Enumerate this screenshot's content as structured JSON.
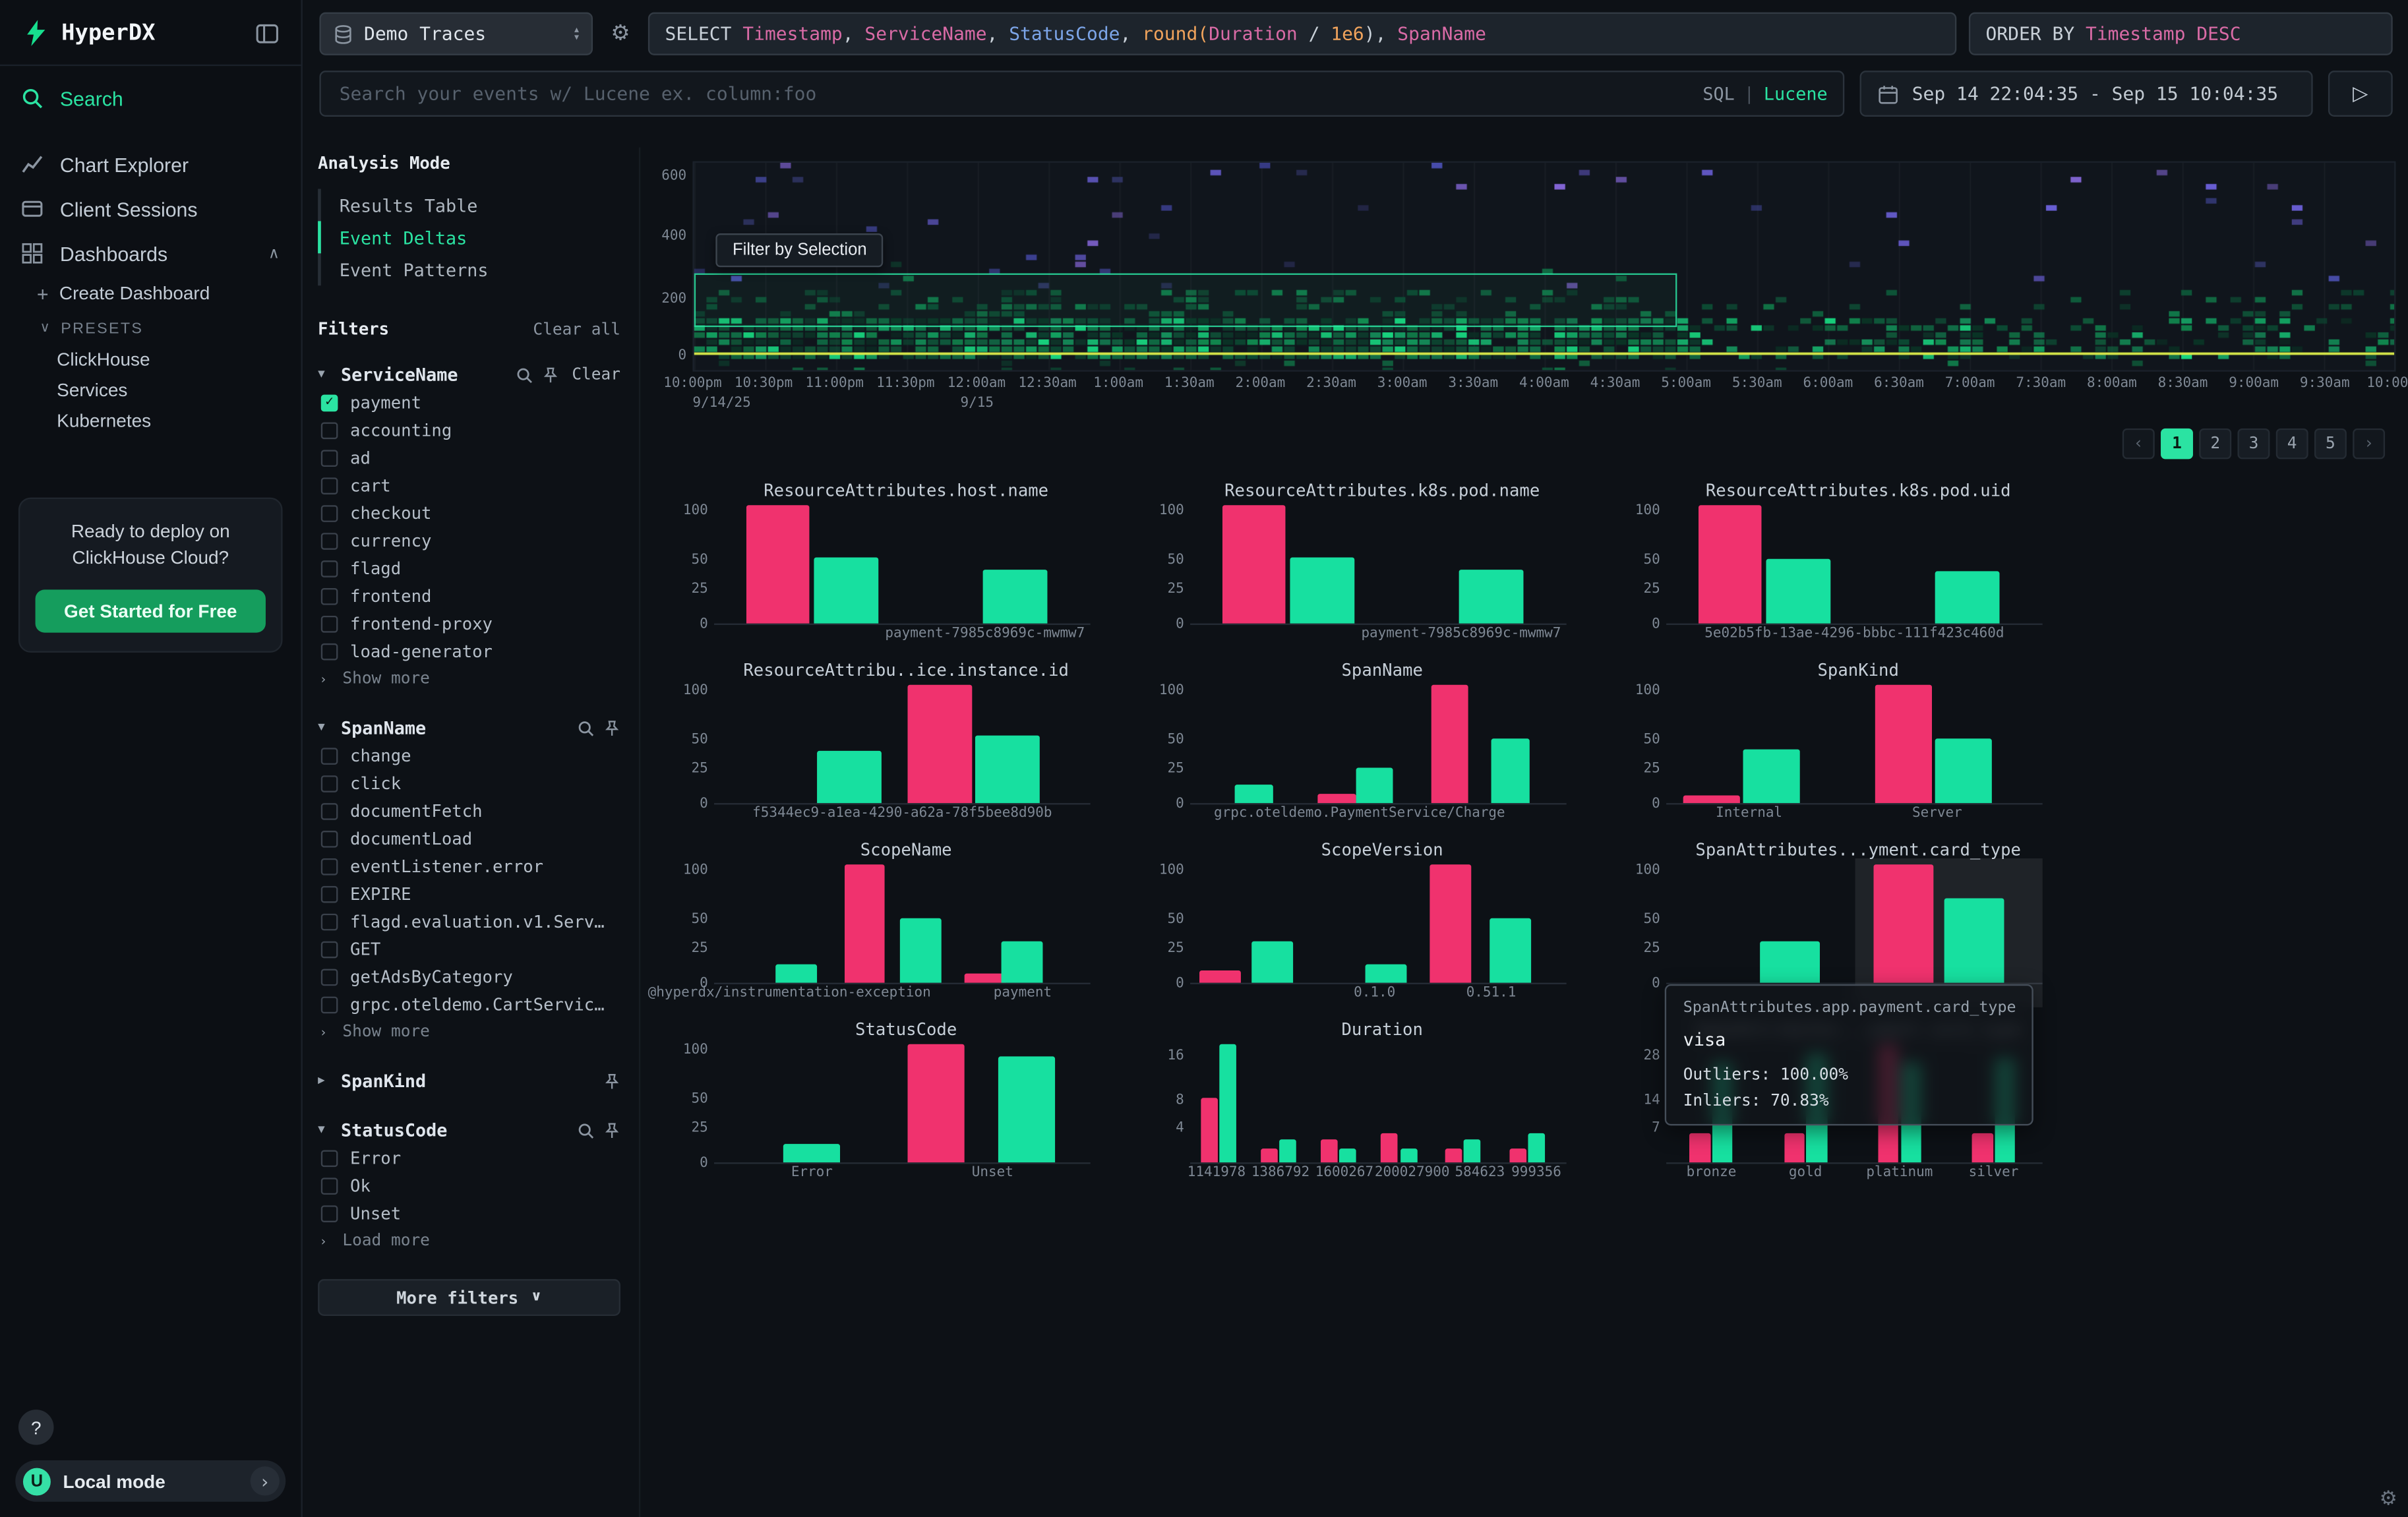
{
  "colors": {
    "accent": "#2be3a2",
    "outlier": "#f0326e",
    "inlier": "#17e0a0"
  },
  "sidebar": {
    "logo_text": "HyperDX",
    "nav": [
      {
        "label": "Search",
        "active": true
      },
      {
        "label": "Chart Explorer",
        "active": false
      },
      {
        "label": "Client Sessions",
        "active": false
      },
      {
        "label": "Dashboards",
        "active": false
      }
    ],
    "create_dashboard": "Create Dashboard",
    "presets_label": "PRESETS",
    "presets": [
      "ClickHouse",
      "Services",
      "Kubernetes"
    ],
    "promo": {
      "line1": "Ready to deploy on",
      "line2": "ClickHouse Cloud?",
      "button": "Get Started for Free"
    },
    "help_label": "?",
    "local_mode": {
      "avatar": "U",
      "label": "Local mode"
    }
  },
  "topbar": {
    "source_select": "Demo Traces",
    "sql_tokens": [
      {
        "text": "SELECT ",
        "type": "keyword"
      },
      {
        "text": "Timestamp",
        "type": "column"
      },
      {
        "text": ", ",
        "type": "plain"
      },
      {
        "text": "ServiceName",
        "type": "column"
      },
      {
        "text": ", ",
        "type": "plain"
      },
      {
        "text": "StatusCode",
        "type": "column-alt"
      },
      {
        "text": ", ",
        "type": "plain"
      },
      {
        "text": "round(",
        "type": "function"
      },
      {
        "text": "Duration",
        "type": "column"
      },
      {
        "text": " / ",
        "type": "plain"
      },
      {
        "text": "1e6",
        "type": "number"
      },
      {
        "text": "), ",
        "type": "plain"
      },
      {
        "text": "SpanName",
        "type": "column"
      }
    ],
    "order_by": {
      "keyword": "ORDER BY ",
      "value": "Timestamp DESC"
    },
    "search_placeholder": "Search your events w/ Lucene ex. column:foo",
    "lang_toggle": {
      "sql": "SQL",
      "divider": "|",
      "lucene": "Lucene"
    },
    "time_range": "Sep 14 22:04:35 - Sep 15 10:04:35",
    "run_icon": "▷"
  },
  "analysis_mode": {
    "title": "Analysis Mode",
    "options": [
      {
        "label": "Results Table",
        "active": false
      },
      {
        "label": "Event Deltas",
        "active": true
      },
      {
        "label": "Event Patterns",
        "active": false
      }
    ]
  },
  "filters": {
    "title": "Filters",
    "clear_all": "Clear all",
    "groups": [
      {
        "name": "ServiceName",
        "expanded": true,
        "has_search": true,
        "has_pin": true,
        "clear_label": "Clear",
        "items": [
          {
            "label": "payment",
            "checked": true
          },
          {
            "label": "accounting",
            "checked": false
          },
          {
            "label": "ad",
            "checked": false
          },
          {
            "label": "cart",
            "checked": false
          },
          {
            "label": "checkout",
            "checked": false
          },
          {
            "label": "currency",
            "checked": false
          },
          {
            "label": "flagd",
            "checked": false
          },
          {
            "label": "frontend",
            "checked": false
          },
          {
            "label": "frontend-proxy",
            "checked": false
          },
          {
            "label": "load-generator",
            "checked": false
          }
        ],
        "more_label": "Show more"
      },
      {
        "name": "SpanName",
        "expanded": true,
        "has_search": true,
        "has_pin": true,
        "items": [
          {
            "label": "change",
            "checked": false
          },
          {
            "label": "click",
            "checked": false
          },
          {
            "label": "documentFetch",
            "checked": false
          },
          {
            "label": "documentLoad",
            "checked": false
          },
          {
            "label": "eventListener.error",
            "checked": false
          },
          {
            "label": "EXPIRE",
            "checked": false
          },
          {
            "label": "flagd.evaluation.v1.Serv…",
            "checked": false
          },
          {
            "label": "GET",
            "checked": false
          },
          {
            "label": "getAdsByCategory",
            "checked": false
          },
          {
            "label": "grpc.oteldemo.CartServic…",
            "checked": false
          }
        ],
        "more_label": "Show more"
      },
      {
        "name": "SpanKind",
        "expanded": false,
        "has_search": false,
        "has_pin": true,
        "items": []
      },
      {
        "name": "StatusCode",
        "expanded": true,
        "has_search": true,
        "has_pin": true,
        "items": [
          {
            "label": "Error",
            "checked": false
          },
          {
            "label": "Ok",
            "checked": false
          },
          {
            "label": "Unset",
            "checked": false
          }
        ],
        "more_label": "Load more"
      }
    ],
    "more_filters": "More filters"
  },
  "pagination": {
    "prev": "‹",
    "pages": [
      "1",
      "2",
      "3",
      "4",
      "5"
    ],
    "active": "1",
    "next": "›"
  },
  "hover_tooltip": {
    "title": "SpanAttributes.app.payment.card_type",
    "value": "visa",
    "outliers": "Outliers: 100.00%",
    "inliers": "Inliers: 70.83%"
  },
  "chart_data": [
    {
      "type": "heatmap",
      "yticks": [
        {
          "label": "600",
          "f": 0.07
        },
        {
          "label": "400",
          "f": 0.36
        },
        {
          "label": "200",
          "f": 0.66
        },
        {
          "label": "0",
          "f": 0.93
        }
      ],
      "xticks": [
        "10:00pm",
        "10:30pm",
        "11:00pm",
        "11:30pm",
        "12:00am",
        "12:30am",
        "1:00am",
        "1:30am",
        "2:00am",
        "2:30am",
        "3:00am",
        "3:30am",
        "4:00am",
        "4:30am",
        "5:00am",
        "5:30am",
        "6:00am",
        "6:30am",
        "7:00am",
        "7:30am",
        "8:00am",
        "8:30am",
        "9:00am",
        "9:30am",
        "10:00am"
      ],
      "date_ticks": [
        {
          "label": "9/14/25",
          "f": 0.0
        },
        {
          "label": "9/15",
          "f": 0.167
        }
      ],
      "selection": {
        "x0": 0.0,
        "x1": 0.578,
        "y0": 0.53,
        "y1": 0.79,
        "label": "Filter by Selection"
      },
      "palette": {
        "bg": "#10151c",
        "dense": [
          "#0c4a33",
          "#0f6b44",
          "#13a562",
          "#18d57f",
          "#0a3526",
          "#11894f"
        ],
        "mid": [
          "#0c4a33",
          "#0e5c3b",
          "#117a4a"
        ],
        "sparse": [
          "#4a4fae",
          "#6a5fd6",
          "#3b3f8f",
          "#8a6ae0",
          "#35396f"
        ],
        "baseline": "#d8e84a"
      }
    },
    {
      "type": "bar",
      "title": "ResourceAttributes.host.name",
      "bar_w": 0.17,
      "yticks": [
        {
          "label": "100",
          "f": 0.05
        },
        {
          "label": "50",
          "f": 0.46
        },
        {
          "label": "25",
          "f": 0.7
        },
        {
          "label": "0",
          "f": 1.0
        }
      ],
      "bars": [
        {
          "x": 0.17,
          "h": 1.0,
          "s": "outlier"
        },
        {
          "x": 0.35,
          "h": 0.56,
          "s": "inlier"
        },
        {
          "x": 0.8,
          "h": 0.45,
          "s": "inlier"
        }
      ],
      "xlabels": [
        {
          "label": "payment-7985c8969c-mwmw7",
          "x": 0.72
        }
      ]
    },
    {
      "type": "bar",
      "title": "ResourceAttributes.k8s.pod.name",
      "bar_w": 0.17,
      "yticks": [
        {
          "label": "100",
          "f": 0.05
        },
        {
          "label": "50",
          "f": 0.46
        },
        {
          "label": "25",
          "f": 0.7
        },
        {
          "label": "0",
          "f": 1.0
        }
      ],
      "bars": [
        {
          "x": 0.17,
          "h": 1.0,
          "s": "outlier"
        },
        {
          "x": 0.35,
          "h": 0.56,
          "s": "inlier"
        },
        {
          "x": 0.8,
          "h": 0.45,
          "s": "inlier"
        }
      ],
      "xlabels": [
        {
          "label": "payment-7985c8969c-mwmw7",
          "x": 0.72
        }
      ]
    },
    {
      "type": "bar",
      "title": "ResourceAttributes.k8s.pod.uid",
      "bar_w": 0.17,
      "yticks": [
        {
          "label": "100",
          "f": 0.05
        },
        {
          "label": "50",
          "f": 0.46
        },
        {
          "label": "25",
          "f": 0.7
        },
        {
          "label": "0",
          "f": 1.0
        }
      ],
      "bars": [
        {
          "x": 0.17,
          "h": 1.0,
          "s": "outlier"
        },
        {
          "x": 0.35,
          "h": 0.55,
          "s": "inlier"
        },
        {
          "x": 0.8,
          "h": 0.44,
          "s": "inlier"
        }
      ],
      "xlabels": [
        {
          "label": "5e02b5fb-13ae-4296-bbbc-111f423c460d",
          "x": 0.5
        }
      ]
    },
    {
      "type": "bar",
      "title": "ResourceAttribu..ice.instance.id",
      "bar_w": 0.17,
      "yticks": [
        {
          "label": "100",
          "f": 0.05
        },
        {
          "label": "50",
          "f": 0.46
        },
        {
          "label": "25",
          "f": 0.7
        },
        {
          "label": "0",
          "f": 1.0
        }
      ],
      "bars": [
        {
          "x": 0.36,
          "h": 0.44,
          "s": "inlier"
        },
        {
          "x": 0.6,
          "h": 1.0,
          "s": "outlier"
        },
        {
          "x": 0.78,
          "h": 0.57,
          "s": "inlier"
        }
      ],
      "xlabels": [
        {
          "label": "f5344ec9-a1ea-4290-a62a-78f5bee8d90b",
          "x": 0.5
        }
      ]
    },
    {
      "type": "bar",
      "title": "SpanName",
      "bar_w": 0.1,
      "yticks": [
        {
          "label": "100",
          "f": 0.05
        },
        {
          "label": "50",
          "f": 0.46
        },
        {
          "label": "25",
          "f": 0.7
        },
        {
          "label": "0",
          "f": 1.0
        }
      ],
      "bars": [
        {
          "x": 0.17,
          "h": 0.15,
          "s": "inlier"
        },
        {
          "x": 0.39,
          "h": 0.08,
          "s": "outlier"
        },
        {
          "x": 0.49,
          "h": 0.3,
          "s": "inlier"
        },
        {
          "x": 0.69,
          "h": 1.0,
          "s": "outlier"
        },
        {
          "x": 0.85,
          "h": 0.55,
          "s": "inlier"
        }
      ],
      "xlabels": [
        {
          "label": "grpc.oteldemo.PaymentService/Charge",
          "x": 0.45
        }
      ]
    },
    {
      "type": "bar",
      "title": "SpanKind",
      "bar_w": 0.15,
      "yticks": [
        {
          "label": "100",
          "f": 0.05
        },
        {
          "label": "50",
          "f": 0.46
        },
        {
          "label": "25",
          "f": 0.7
        },
        {
          "label": "0",
          "f": 1.0
        }
      ],
      "bars": [
        {
          "x": 0.12,
          "h": 0.06,
          "s": "outlier"
        },
        {
          "x": 0.28,
          "h": 0.45,
          "s": "inlier"
        },
        {
          "x": 0.63,
          "h": 1.0,
          "s": "outlier"
        },
        {
          "x": 0.79,
          "h": 0.55,
          "s": "inlier"
        }
      ],
      "xlabels": [
        {
          "label": "Internal",
          "x": 0.22
        },
        {
          "label": "Server",
          "x": 0.72
        }
      ]
    },
    {
      "type": "bar",
      "title": "ScopeName",
      "bar_w": 0.11,
      "yticks": [
        {
          "label": "100",
          "f": 0.05
        },
        {
          "label": "50",
          "f": 0.46
        },
        {
          "label": "25",
          "f": 0.7
        },
        {
          "label": "0",
          "f": 1.0
        }
      ],
      "bars": [
        {
          "x": 0.22,
          "h": 0.15,
          "s": "inlier"
        },
        {
          "x": 0.4,
          "h": 1.0,
          "s": "outlier"
        },
        {
          "x": 0.55,
          "h": 0.55,
          "s": "inlier"
        },
        {
          "x": 0.72,
          "h": 0.08,
          "s": "outlier"
        },
        {
          "x": 0.82,
          "h": 0.35,
          "s": "inlier"
        }
      ],
      "xlabels": [
        {
          "label": "@hyperdx/instrumentation-exception",
          "x": 0.2
        },
        {
          "label": "payment",
          "x": 0.82
        }
      ]
    },
    {
      "type": "bar",
      "title": "ScopeVersion",
      "bar_w": 0.11,
      "yticks": [
        {
          "label": "100",
          "f": 0.05
        },
        {
          "label": "50",
          "f": 0.46
        },
        {
          "label": "25",
          "f": 0.7
        },
        {
          "label": "0",
          "f": 1.0
        }
      ],
      "bars": [
        {
          "x": 0.08,
          "h": 0.1,
          "s": "outlier"
        },
        {
          "x": 0.22,
          "h": 0.35,
          "s": "inlier"
        },
        {
          "x": 0.52,
          "h": 0.15,
          "s": "inlier"
        },
        {
          "x": 0.69,
          "h": 1.0,
          "s": "outlier"
        },
        {
          "x": 0.85,
          "h": 0.55,
          "s": "inlier"
        }
      ],
      "xlabels": [
        {
          "label": "0.1.0",
          "x": 0.49
        },
        {
          "label": "0.51.1",
          "x": 0.8
        }
      ]
    },
    {
      "type": "bar",
      "title": "SpanAttributes...yment.card_type",
      "bar_w": 0.16,
      "highlight": [
        0.5,
        1.0
      ],
      "yticks": [
        {
          "label": "100",
          "f": 0.05
        },
        {
          "label": "50",
          "f": 0.46
        },
        {
          "label": "25",
          "f": 0.7
        },
        {
          "label": "0",
          "f": 1.0
        }
      ],
      "bars": [
        {
          "x": 0.33,
          "h": 0.35,
          "s": "inlier"
        },
        {
          "x": 0.63,
          "h": 1.0,
          "s": "outlier"
        },
        {
          "x": 0.82,
          "h": 0.72,
          "s": "inlier"
        }
      ],
      "xlabels": []
    },
    {
      "type": "bar",
      "title": "StatusCode",
      "bar_w": 0.15,
      "yticks": [
        {
          "label": "100",
          "f": 0.05
        },
        {
          "label": "50",
          "f": 0.46
        },
        {
          "label": "25",
          "f": 0.7
        },
        {
          "label": "0",
          "f": 1.0
        }
      ],
      "bars": [
        {
          "x": 0.26,
          "h": 0.15,
          "s": "inlier"
        },
        {
          "x": 0.59,
          "h": 1.0,
          "s": "outlier"
        },
        {
          "x": 0.83,
          "h": 0.9,
          "s": "inlier"
        }
      ],
      "xlabels": [
        {
          "label": "Error",
          "x": 0.26
        },
        {
          "label": "Unset",
          "x": 0.74
        }
      ]
    },
    {
      "type": "bar",
      "title": "Duration",
      "bar_w": 0.045,
      "yticks": [
        {
          "label": "16",
          "f": 0.1
        },
        {
          "label": "8",
          "f": 0.48
        },
        {
          "label": "4",
          "f": 0.7
        }
      ],
      "bars": [
        {
          "x": 0.05,
          "h": 0.55,
          "s": "outlier"
        },
        {
          "x": 0.1,
          "h": 1.0,
          "s": "inlier"
        },
        {
          "x": 0.21,
          "h": 0.12,
          "s": "outlier"
        },
        {
          "x": 0.26,
          "h": 0.2,
          "s": "inlier"
        },
        {
          "x": 0.37,
          "h": 0.2,
          "s": "outlier"
        },
        {
          "x": 0.42,
          "h": 0.12,
          "s": "inlier"
        },
        {
          "x": 0.53,
          "h": 0.25,
          "s": "outlier"
        },
        {
          "x": 0.58,
          "h": 0.12,
          "s": "inlier"
        },
        {
          "x": 0.7,
          "h": 0.12,
          "s": "outlier"
        },
        {
          "x": 0.75,
          "h": 0.2,
          "s": "inlier"
        },
        {
          "x": 0.87,
          "h": 0.12,
          "s": "outlier"
        },
        {
          "x": 0.92,
          "h": 0.25,
          "s": "inlier"
        }
      ],
      "xlabels": [
        {
          "label": "1141978",
          "x": 0.07
        },
        {
          "label": "1386792",
          "x": 0.24
        },
        {
          "label": "1600267",
          "x": 0.41
        },
        {
          "label": "200027900",
          "x": 0.59
        },
        {
          "label": "584623",
          "x": 0.77
        },
        {
          "label": "999356",
          "x": 0.92
        }
      ]
    },
    {
      "type": "bar",
      "title": "SpanAttributes...yment.card_type",
      "bar_w": 0.055,
      "yticks": [
        {
          "label": "28",
          "f": 0.1
        },
        {
          "label": "14",
          "f": 0.48
        },
        {
          "label": "7",
          "f": 0.7
        }
      ],
      "bars": [
        {
          "x": 0.09,
          "h": 0.25,
          "s": "outlier"
        },
        {
          "x": 0.15,
          "h": 0.85,
          "s": "inlier"
        },
        {
          "x": 0.34,
          "h": 0.25,
          "s": "outlier"
        },
        {
          "x": 0.4,
          "h": 0.92,
          "s": "inlier"
        },
        {
          "x": 0.59,
          "h": 1.0,
          "s": "outlier"
        },
        {
          "x": 0.65,
          "h": 0.85,
          "s": "inlier"
        },
        {
          "x": 0.84,
          "h": 0.25,
          "s": "outlier"
        },
        {
          "x": 0.9,
          "h": 0.88,
          "s": "inlier"
        }
      ],
      "xlabels": [
        {
          "label": "bronze",
          "x": 0.12
        },
        {
          "label": "gold",
          "x": 0.37
        },
        {
          "label": "platinum",
          "x": 0.62
        },
        {
          "label": "silver",
          "x": 0.87
        }
      ]
    }
  ]
}
